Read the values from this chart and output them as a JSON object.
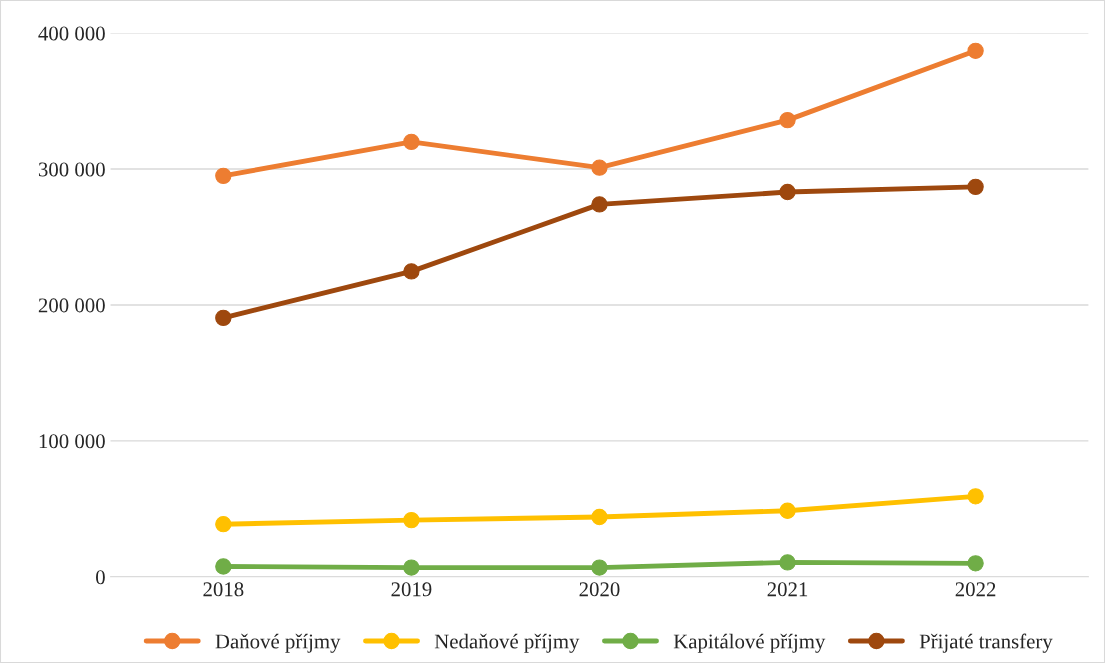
{
  "chart_data": {
    "type": "line",
    "categories": [
      "2018",
      "2019",
      "2020",
      "2021",
      "2022"
    ],
    "series": [
      {
        "name": "Daňové příjmy",
        "color": "#ed7d31",
        "values": [
          295000,
          320000,
          301000,
          336000,
          387000
        ]
      },
      {
        "name": "Nedaňové příjmy",
        "color": "#ffc000",
        "values": [
          38700,
          41700,
          44000,
          48600,
          59200
        ]
      },
      {
        "name": "Kapitálové příjmy",
        "color": "#70ad47",
        "values": [
          7600,
          6800,
          6800,
          10600,
          9900
        ]
      },
      {
        "name": "Přijaté transfery",
        "color": "#9e480e",
        "values": [
          190500,
          224700,
          274000,
          283100,
          286900
        ]
      }
    ],
    "ylim": [
      0,
      400000
    ],
    "yticks": [
      {
        "value": 0,
        "label": "0"
      },
      {
        "value": 100000,
        "label": "100 000"
      },
      {
        "value": 200000,
        "label": "200 000"
      },
      {
        "value": 300000,
        "label": "300 000"
      },
      {
        "value": 400000,
        "label": "400 000"
      }
    ],
    "grid": "y",
    "legend": "bottom",
    "marker": "circle",
    "line_style": "solid"
  }
}
